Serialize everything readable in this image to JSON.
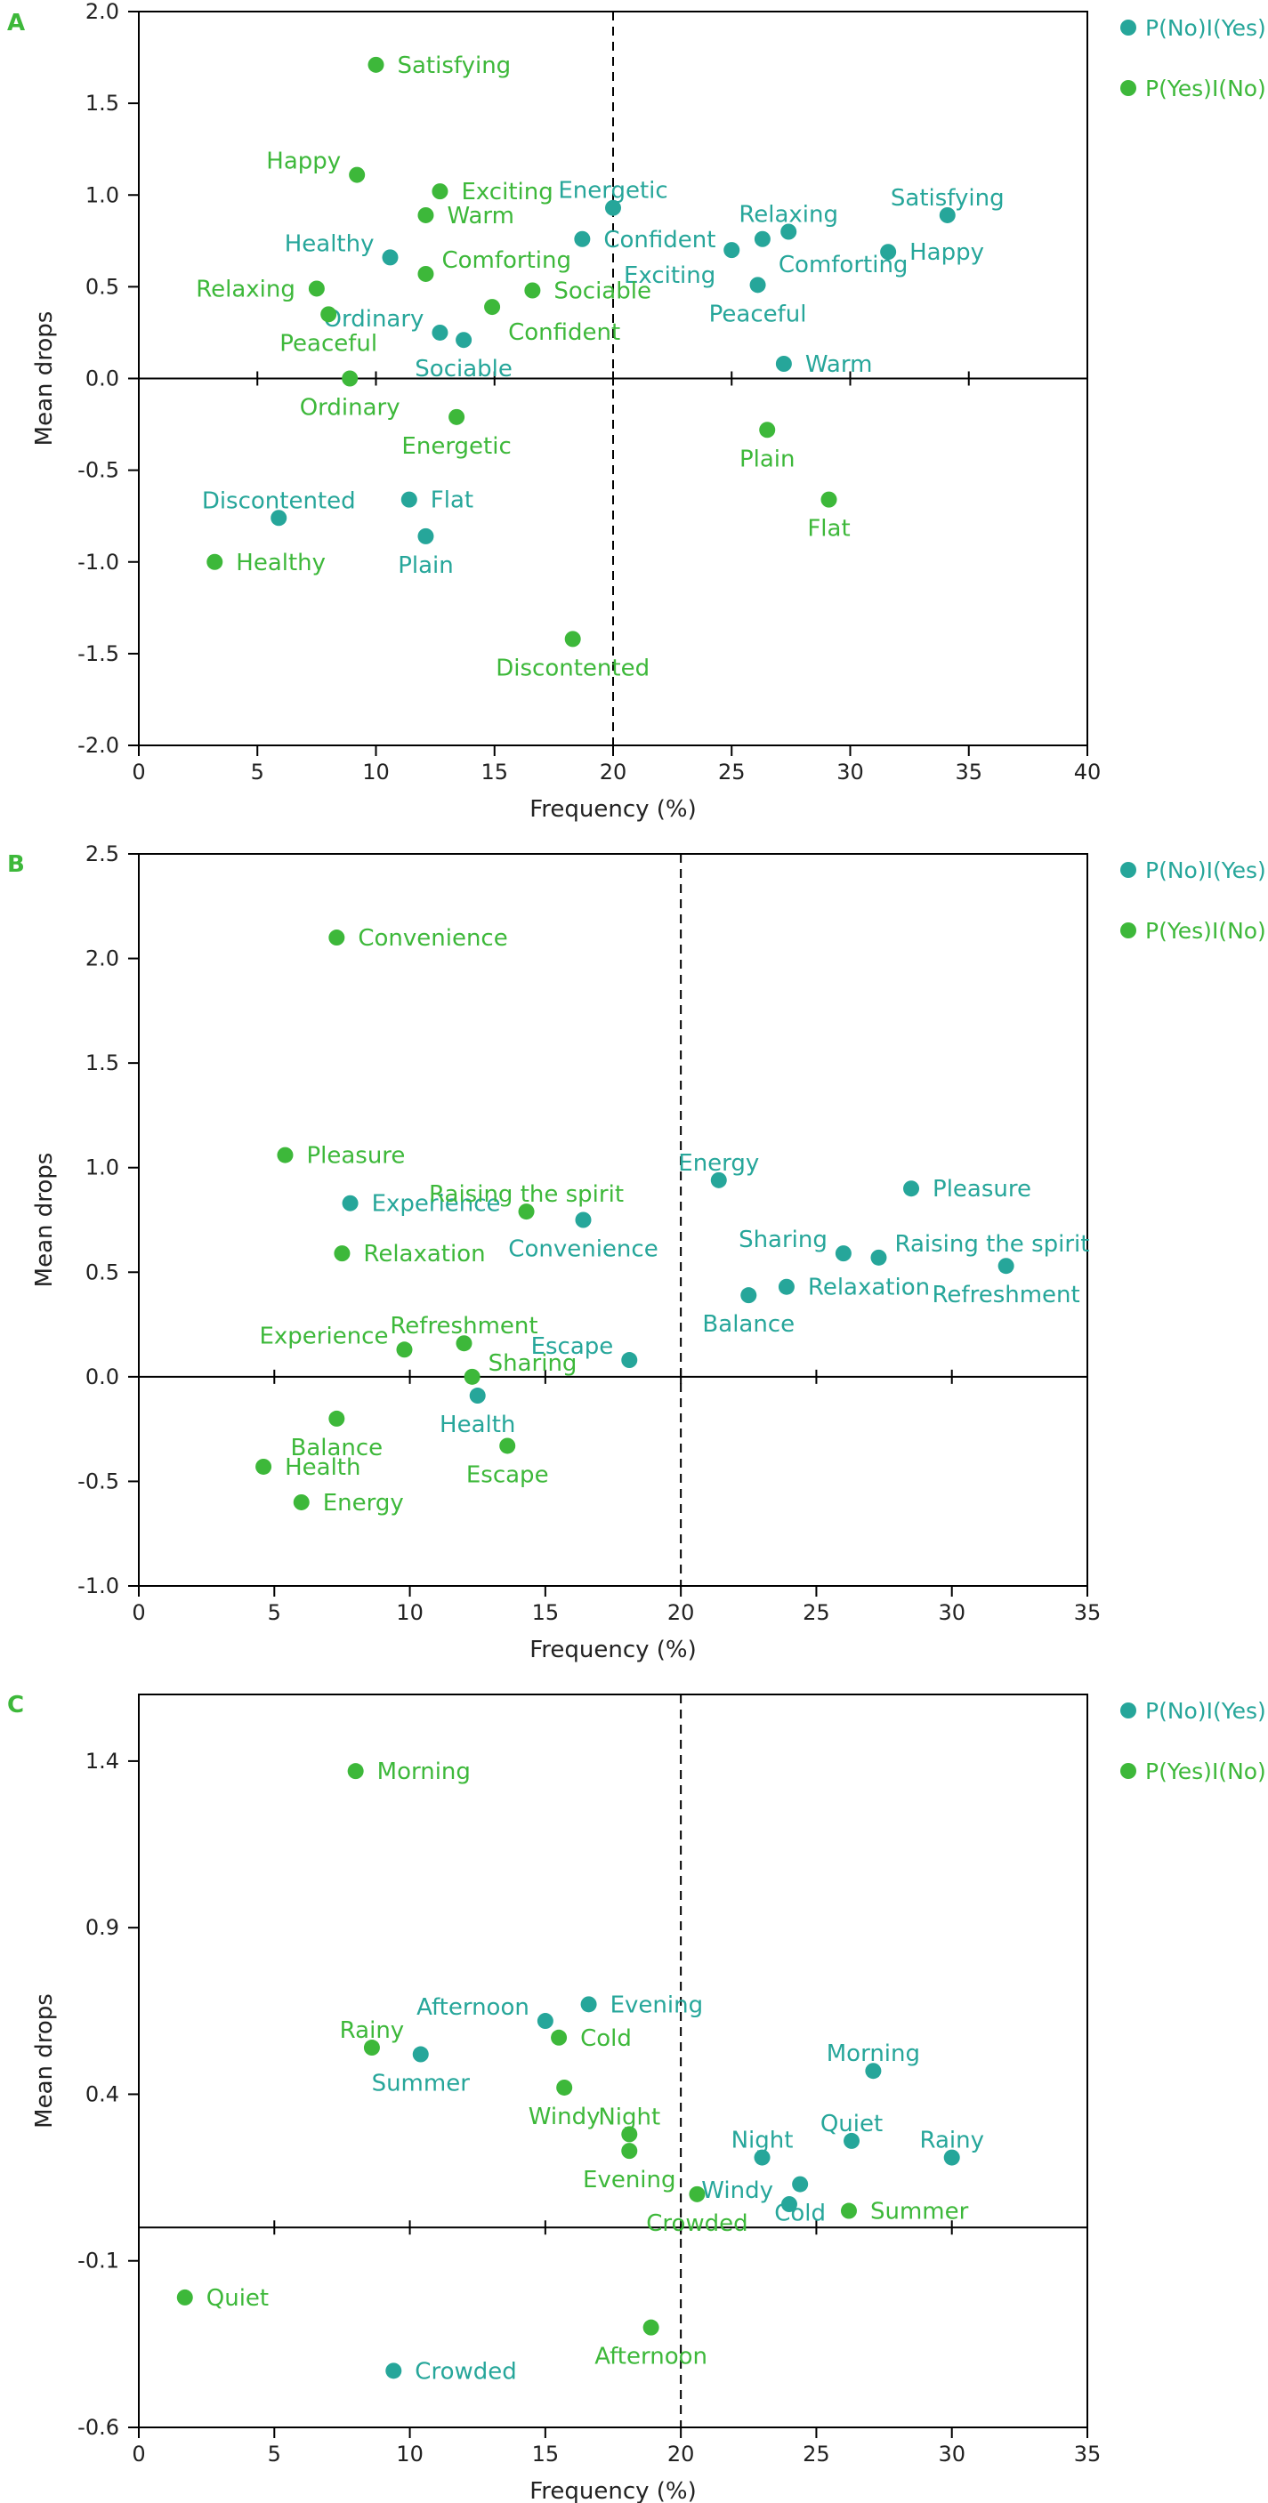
{
  "colors": {
    "teal": "#26A69A",
    "green": "#3DB83A",
    "axis": "#000000"
  },
  "chart_data": [
    {
      "panel_label": "A",
      "type": "scatter",
      "xlabel": "Frequency (%)",
      "ylabel": "Mean drops",
      "xlim": [
        0,
        40
      ],
      "ylim": [
        -2.0,
        2.0
      ],
      "xticks": [
        0,
        5,
        10,
        15,
        20,
        25,
        30,
        35,
        40
      ],
      "yticks": [
        -2.0,
        -1.5,
        -1.0,
        -0.5,
        0.0,
        0.5,
        1.0,
        1.5,
        2.0
      ],
      "ytick_labels": [
        "-2.0",
        "-1.5",
        "-1.0",
        "-0.5",
        "0.0",
        "0.5",
        "1.0",
        "1.5",
        "2.0"
      ],
      "threshold_x": 20,
      "legend": {
        "placement": "top-right outside",
        "entries": [
          "P(No)I(Yes)",
          "P(Yes)I(No)"
        ]
      },
      "series": [
        {
          "name": "P(No)I(Yes)",
          "color": "teal",
          "points": [
            {
              "label": "Energetic",
              "x": 20.0,
              "y": 0.93,
              "pos": "t"
            },
            {
              "label": "Confident",
              "x": 18.7,
              "y": 0.76,
              "pos": "r"
            },
            {
              "label": "Healthy",
              "x": 10.6,
              "y": 0.66,
              "pos": "tl"
            },
            {
              "label": "Ordinary",
              "x": 12.7,
              "y": 0.25,
              "pos": "tl"
            },
            {
              "label": "Sociable",
              "x": 13.7,
              "y": 0.21,
              "pos": "b"
            },
            {
              "label": "Relaxing",
              "x": 27.4,
              "y": 0.8,
              "pos": "t"
            },
            {
              "label": "Satisfying",
              "x": 34.1,
              "y": 0.89,
              "pos": "t"
            },
            {
              "label": "Happy",
              "x": 31.6,
              "y": 0.69,
              "pos": "r"
            },
            {
              "label": "Comforting",
              "x": 26.3,
              "y": 0.76,
              "pos": "br"
            },
            {
              "label": "Exciting",
              "x": 25.0,
              "y": 0.7,
              "pos": "bl"
            },
            {
              "label": "Peaceful",
              "x": 26.1,
              "y": 0.51,
              "pos": "b"
            },
            {
              "label": "Warm",
              "x": 27.2,
              "y": 0.08,
              "pos": "r"
            },
            {
              "label": "Discontented",
              "x": 5.9,
              "y": -0.76,
              "pos": "t"
            },
            {
              "label": "Flat",
              "x": 11.4,
              "y": -0.66,
              "pos": "r"
            },
            {
              "label": "Plain",
              "x": 12.1,
              "y": -0.86,
              "pos": "b"
            }
          ]
        },
        {
          "name": "P(Yes)I(No)",
          "color": "green",
          "points": [
            {
              "label": "Satisfying",
              "x": 10.0,
              "y": 1.71,
              "pos": "r"
            },
            {
              "label": "Happy",
              "x": 9.2,
              "y": 1.11,
              "pos": "tl"
            },
            {
              "label": "Exciting",
              "x": 12.7,
              "y": 1.02,
              "pos": "r"
            },
            {
              "label": "Warm",
              "x": 12.1,
              "y": 0.89,
              "pos": "r"
            },
            {
              "label": "Comforting",
              "x": 12.1,
              "y": 0.57,
              "pos": "tr"
            },
            {
              "label": "Sociable",
              "x": 16.6,
              "y": 0.48,
              "pos": "r"
            },
            {
              "label": "Confident",
              "x": 14.9,
              "y": 0.39,
              "pos": "br"
            },
            {
              "label": "Relaxing",
              "x": 7.5,
              "y": 0.49,
              "pos": "l"
            },
            {
              "label": "Peaceful",
              "x": 8.0,
              "y": 0.35,
              "pos": "b"
            },
            {
              "label": "Ordinary",
              "x": 8.9,
              "y": 0.0,
              "pos": "b"
            },
            {
              "label": "Energetic",
              "x": 13.4,
              "y": -0.21,
              "pos": "b"
            },
            {
              "label": "Plain",
              "x": 26.5,
              "y": -0.28,
              "pos": "b"
            },
            {
              "label": "Flat",
              "x": 29.1,
              "y": -0.66,
              "pos": "b"
            },
            {
              "label": "Healthy",
              "x": 3.2,
              "y": -1.0,
              "pos": "r"
            },
            {
              "label": "Discontented",
              "x": 18.3,
              "y": -1.42,
              "pos": "b"
            }
          ]
        }
      ]
    },
    {
      "panel_label": "B",
      "type": "scatter",
      "xlabel": "Frequency (%)",
      "ylabel": "Mean drops",
      "xlim": [
        0,
        35
      ],
      "ylim": [
        -1.0,
        2.5
      ],
      "xticks": [
        0,
        5,
        10,
        15,
        20,
        25,
        30,
        35
      ],
      "yticks": [
        -1.0,
        -0.5,
        0.0,
        0.5,
        1.0,
        1.5,
        2.0,
        2.5
      ],
      "ytick_labels": [
        "-1.0",
        "-0.5",
        "0.0",
        "0.5",
        "1.0",
        "1.5",
        "2.0",
        "2.5"
      ],
      "threshold_x": 20,
      "legend": {
        "placement": "top-right outside",
        "entries": [
          "P(No)I(Yes)",
          "P(Yes)I(No)"
        ]
      },
      "series": [
        {
          "name": "P(No)I(Yes)",
          "color": "teal",
          "points": [
            {
              "label": "Experience",
              "x": 7.8,
              "y": 0.83,
              "pos": "r"
            },
            {
              "label": "Convenience",
              "x": 16.4,
              "y": 0.75,
              "pos": "b"
            },
            {
              "label": "Energy",
              "x": 21.4,
              "y": 0.94,
              "pos": "t"
            },
            {
              "label": "Pleasure",
              "x": 28.5,
              "y": 0.9,
              "pos": "r"
            },
            {
              "label": "Sharing",
              "x": 26.0,
              "y": 0.59,
              "pos": "tl"
            },
            {
              "label": "Raising the spirit",
              "x": 27.3,
              "y": 0.57,
              "pos": "tr"
            },
            {
              "label": "Refreshment",
              "x": 32.0,
              "y": 0.53,
              "pos": "b"
            },
            {
              "label": "Balance",
              "x": 22.5,
              "y": 0.39,
              "pos": "b"
            },
            {
              "label": "Relaxation",
              "x": 23.9,
              "y": 0.43,
              "pos": "r"
            },
            {
              "label": "Escape",
              "x": 18.1,
              "y": 0.08,
              "pos": "tl"
            },
            {
              "label": "Health",
              "x": 12.5,
              "y": -0.09,
              "pos": "b"
            }
          ]
        },
        {
          "name": "P(Yes)I(No)",
          "color": "green",
          "points": [
            {
              "label": "Convenience",
              "x": 7.3,
              "y": 2.1,
              "pos": "r"
            },
            {
              "label": "Pleasure",
              "x": 5.4,
              "y": 1.06,
              "pos": "r"
            },
            {
              "label": "Raising the spirit",
              "x": 14.3,
              "y": 0.79,
              "pos": "t"
            },
            {
              "label": "Relaxation",
              "x": 7.5,
              "y": 0.59,
              "pos": "r"
            },
            {
              "label": "Experience",
              "x": 9.8,
              "y": 0.13,
              "pos": "tl"
            },
            {
              "label": "Refreshment",
              "x": 12.0,
              "y": 0.16,
              "pos": "t"
            },
            {
              "label": "Sharing",
              "x": 12.3,
              "y": 0.0,
              "pos": "tr"
            },
            {
              "label": "Balance",
              "x": 7.3,
              "y": -0.2,
              "pos": "b"
            },
            {
              "label": "Health",
              "x": 4.6,
              "y": -0.43,
              "pos": "r"
            },
            {
              "label": "Escape",
              "x": 13.6,
              "y": -0.33,
              "pos": "b"
            },
            {
              "label": "Energy",
              "x": 6.0,
              "y": -0.6,
              "pos": "r"
            }
          ]
        }
      ]
    },
    {
      "panel_label": "C",
      "type": "scatter",
      "xlabel": "Frequency (%)",
      "ylabel": "Mean drops",
      "xlim": [
        0,
        35
      ],
      "ylim": [
        -0.6,
        1.6
      ],
      "xticks": [
        0,
        5,
        10,
        15,
        20,
        25,
        30,
        35
      ],
      "yticks": [
        -0.6,
        -0.1,
        0.4,
        0.9,
        1.4
      ],
      "ytick_labels": [
        "-0.6",
        "-0.1",
        "0.4",
        "0.9",
        "1.4"
      ],
      "zero_y": 0.0,
      "threshold_x": 20,
      "legend": {
        "placement": "top-right outside",
        "entries": [
          "P(No)I(Yes)",
          "P(Yes)I(No)"
        ]
      },
      "series": [
        {
          "name": "P(No)I(Yes)",
          "color": "teal",
          "points": [
            {
              "label": "Afternoon",
              "x": 15.0,
              "y": 0.62,
              "pos": "tl"
            },
            {
              "label": "Evening",
              "x": 16.6,
              "y": 0.67,
              "pos": "r"
            },
            {
              "label": "Summer",
              "x": 10.4,
              "y": 0.52,
              "pos": "b"
            },
            {
              "label": "Morning",
              "x": 27.1,
              "y": 0.47,
              "pos": "t"
            },
            {
              "label": "Quiet",
              "x": 26.3,
              "y": 0.26,
              "pos": "t"
            },
            {
              "label": "Rainy",
              "x": 30.0,
              "y": 0.21,
              "pos": "t"
            },
            {
              "label": "Night",
              "x": 23.0,
              "y": 0.21,
              "pos": "t"
            },
            {
              "label": "Cold",
              "x": 24.4,
              "y": 0.13,
              "pos": "b"
            },
            {
              "label": "Windy",
              "x": 24.0,
              "y": 0.07,
              "pos": "tl"
            },
            {
              "label": "Crowded",
              "x": 9.4,
              "y": -0.43,
              "pos": "r"
            }
          ]
        },
        {
          "name": "P(Yes)I(No)",
          "color": "green",
          "points": [
            {
              "label": "Morning",
              "x": 8.0,
              "y": 1.37,
              "pos": "r"
            },
            {
              "label": "Rainy",
              "x": 8.6,
              "y": 0.54,
              "pos": "t"
            },
            {
              "label": "Cold",
              "x": 15.5,
              "y": 0.57,
              "pos": "r"
            },
            {
              "label": "Windy",
              "x": 15.7,
              "y": 0.42,
              "pos": "b"
            },
            {
              "label": "Night",
              "x": 18.1,
              "y": 0.28,
              "pos": "t"
            },
            {
              "label": "Evening",
              "x": 18.1,
              "y": 0.23,
              "pos": "b"
            },
            {
              "label": "Crowded",
              "x": 20.6,
              "y": 0.1,
              "pos": "b"
            },
            {
              "label": "Summer",
              "x": 26.2,
              "y": 0.05,
              "pos": "r"
            },
            {
              "label": "Quiet",
              "x": 1.7,
              "y": -0.21,
              "pos": "r"
            },
            {
              "label": "Afternoon",
              "x": 18.9,
              "y": -0.3,
              "pos": "b"
            }
          ]
        }
      ]
    }
  ]
}
